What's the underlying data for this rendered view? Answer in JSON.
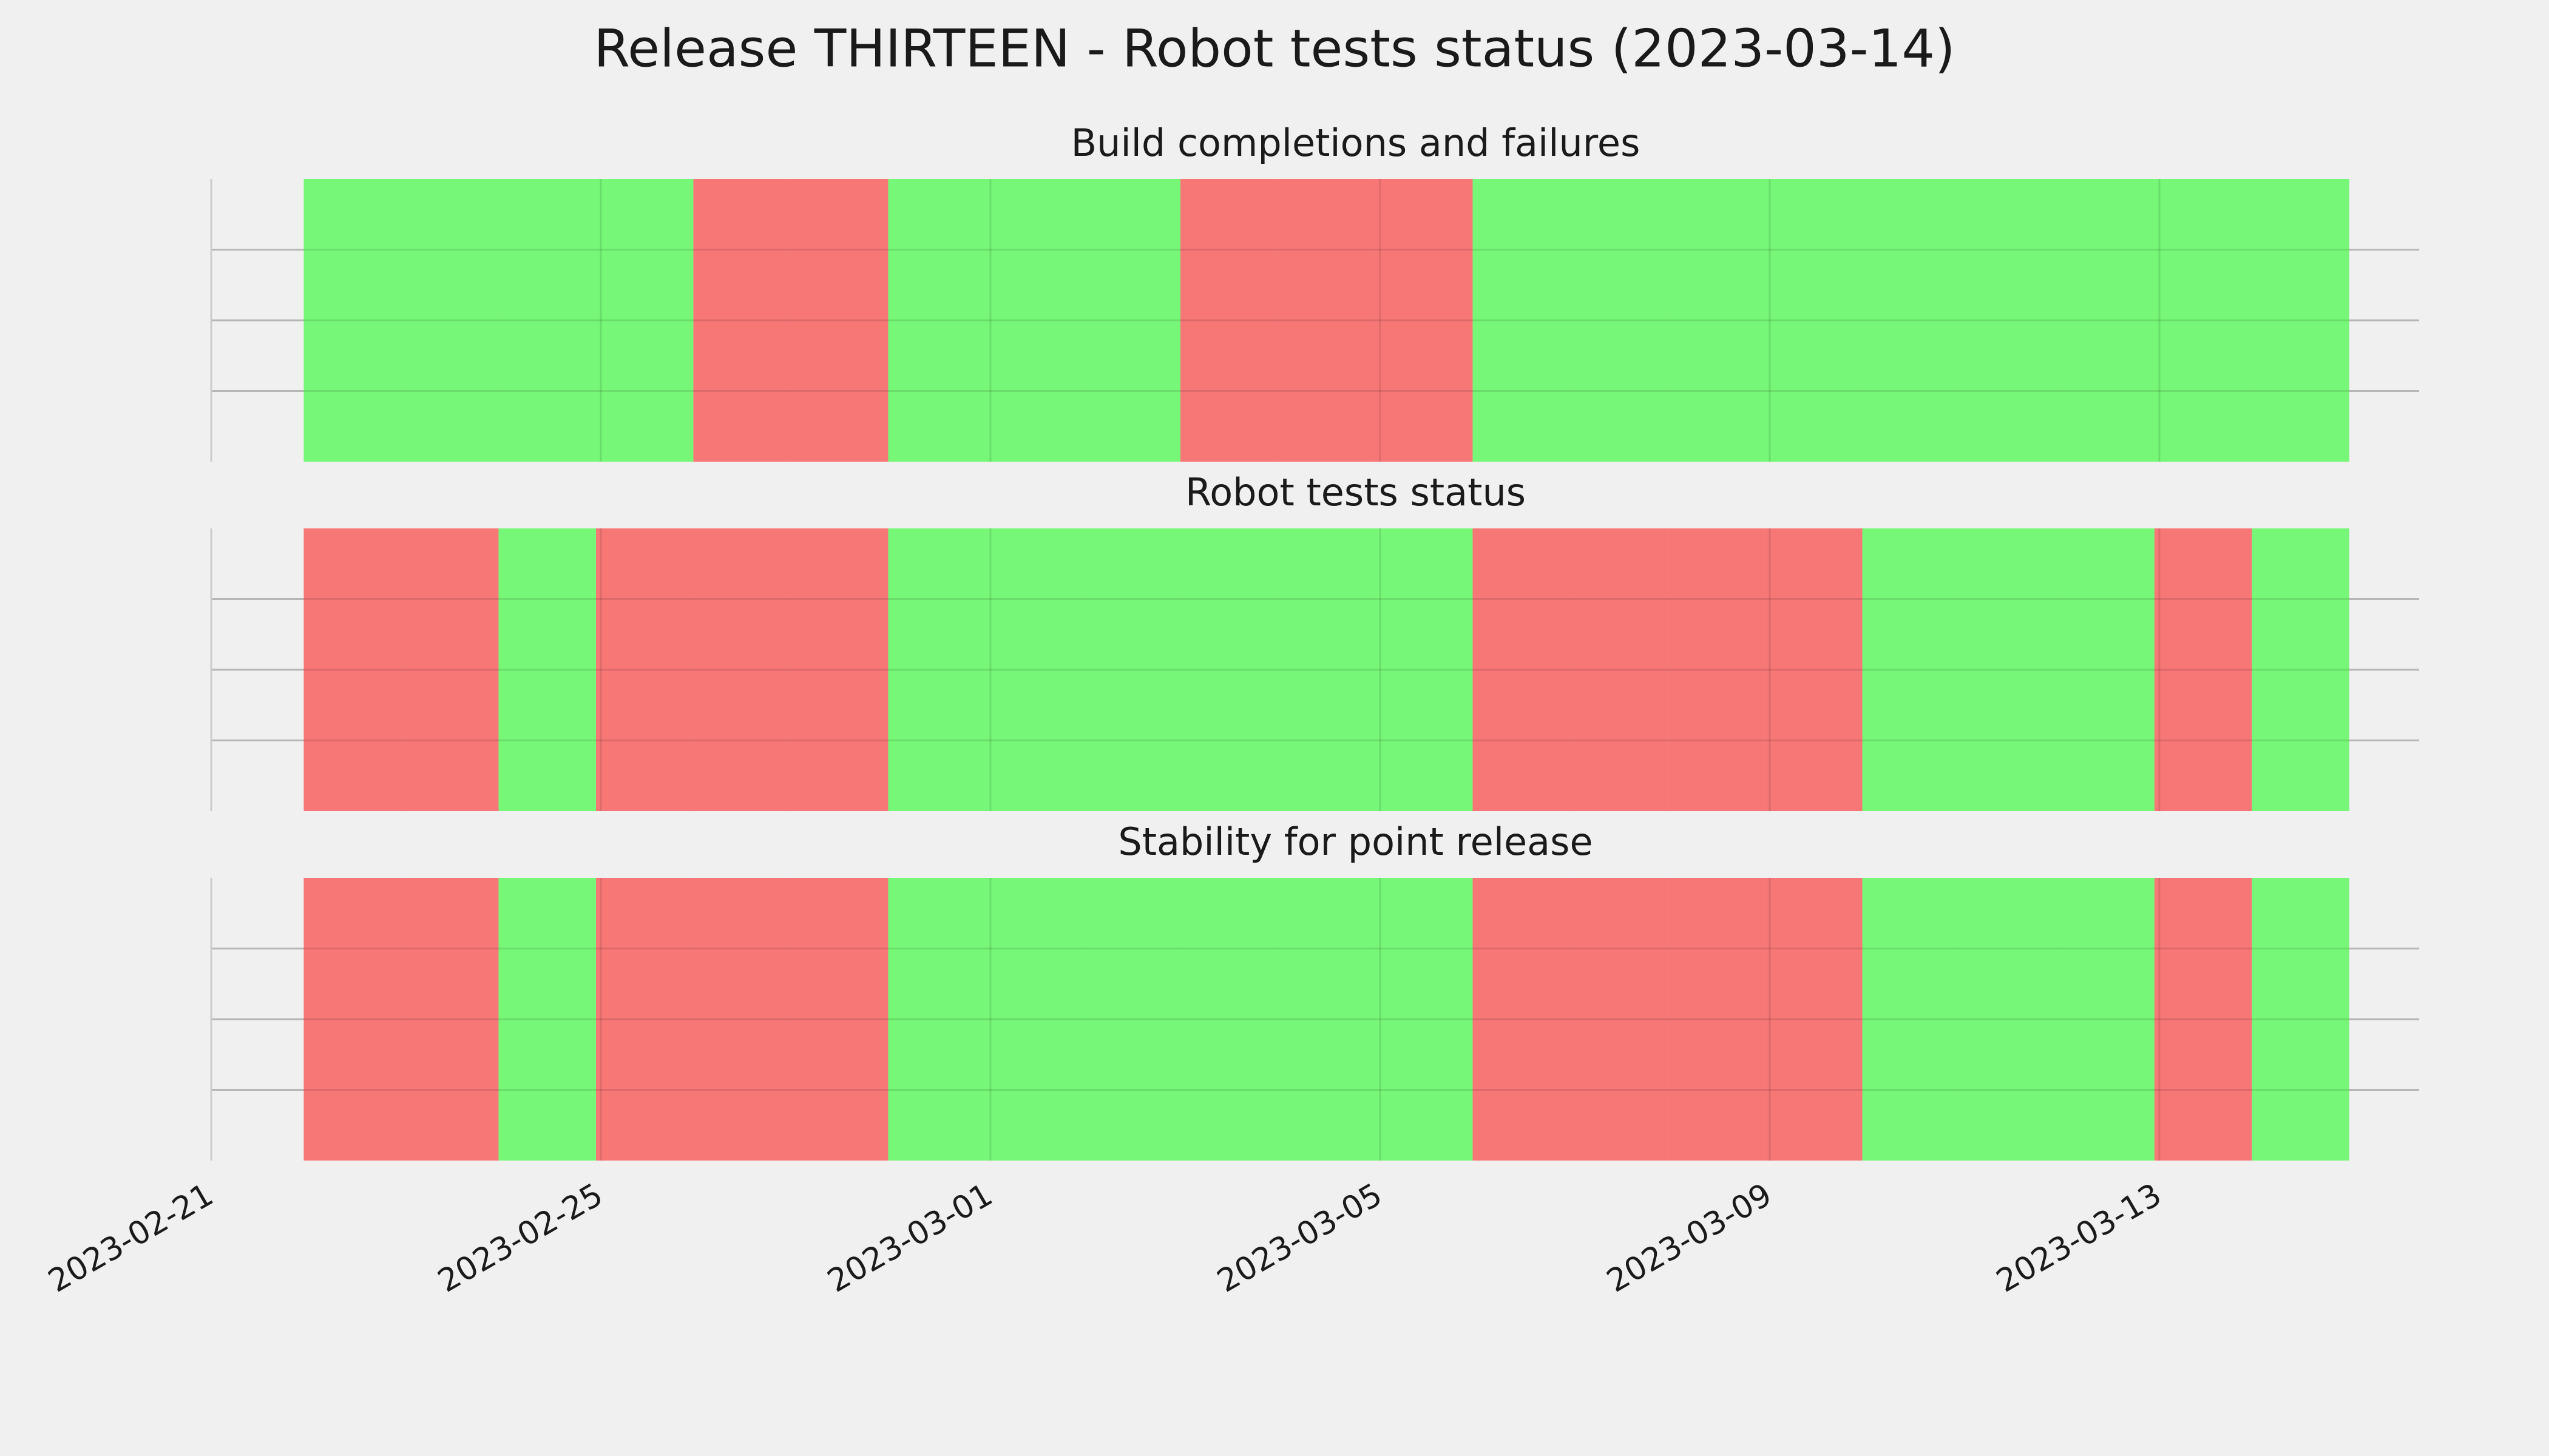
{
  "title": "Release THIRTEEN - Robot tests status (2023-03-14)",
  "chart_data": [
    {
      "type": "timeline",
      "title": "Build completions and failures",
      "x": [
        "2023-02-22",
        "2023-02-23",
        "2023-02-24",
        "2023-02-25",
        "2023-02-26",
        "2023-02-27",
        "2023-02-28",
        "2023-03-01",
        "2023-03-02",
        "2023-03-03",
        "2023-03-04",
        "2023-03-05",
        "2023-03-06",
        "2023-03-07",
        "2023-03-08",
        "2023-03-09",
        "2023-03-10",
        "2023-03-11",
        "2023-03-12",
        "2023-03-13",
        "2023-03-14"
      ],
      "values": [
        1,
        1,
        1,
        1,
        0,
        0,
        1,
        1,
        1,
        0,
        0,
        0,
        1,
        1,
        1,
        1,
        1,
        1,
        1,
        1,
        1
      ],
      "colors": [
        "#f77777",
        "#77f777"
      ],
      "xlim": [
        "2023-02-21",
        "2023-03-15"
      ],
      "xticks": [
        "2023-02-21",
        "2023-02-25",
        "2023-03-01",
        "2023-03-05",
        "2023-03-09",
        "2023-03-13"
      ],
      "ylim": [
        0,
        1
      ],
      "yticks": [
        0.25,
        0.5,
        0.75
      ],
      "grid": true
    },
    {
      "type": "timeline",
      "title": "Robot tests status",
      "x": [
        "2023-02-22",
        "2023-02-23",
        "2023-02-24",
        "2023-02-25",
        "2023-02-26",
        "2023-02-27",
        "2023-02-28",
        "2023-03-01",
        "2023-03-02",
        "2023-03-03",
        "2023-03-04",
        "2023-03-05",
        "2023-03-06",
        "2023-03-07",
        "2023-03-08",
        "2023-03-09",
        "2023-03-10",
        "2023-03-11",
        "2023-03-12",
        "2023-03-13",
        "2023-03-14"
      ],
      "values": [
        0,
        0,
        1,
        0,
        0,
        0,
        1,
        1,
        1,
        1,
        1,
        1,
        0,
        0,
        0,
        0,
        1,
        1,
        1,
        0,
        1
      ],
      "colors": [
        "#f77777",
        "#77f777"
      ],
      "xlim": [
        "2023-02-21",
        "2023-03-15"
      ],
      "xticks": [
        "2023-02-21",
        "2023-02-25",
        "2023-03-01",
        "2023-03-05",
        "2023-03-09",
        "2023-03-13"
      ],
      "ylim": [
        0,
        1
      ],
      "yticks": [
        0.25,
        0.5,
        0.75
      ],
      "grid": true
    },
    {
      "type": "timeline",
      "title": "Stability for point release",
      "x": [
        "2023-02-22",
        "2023-02-23",
        "2023-02-24",
        "2023-02-25",
        "2023-02-26",
        "2023-02-27",
        "2023-02-28",
        "2023-03-01",
        "2023-03-02",
        "2023-03-03",
        "2023-03-04",
        "2023-03-05",
        "2023-03-06",
        "2023-03-07",
        "2023-03-08",
        "2023-03-09",
        "2023-03-10",
        "2023-03-11",
        "2023-03-12",
        "2023-03-13",
        "2023-03-14"
      ],
      "values": [
        0,
        0,
        1,
        0,
        0,
        0,
        1,
        1,
        1,
        1,
        1,
        1,
        0,
        0,
        0,
        0,
        1,
        1,
        1,
        0,
        1
      ],
      "colors": [
        "#f77777",
        "#77f777"
      ],
      "xlim": [
        "2023-02-21",
        "2023-03-15"
      ],
      "xticks": [
        "2023-02-21",
        "2023-02-25",
        "2023-03-01",
        "2023-03-05",
        "2023-03-09",
        "2023-03-13"
      ],
      "ylim": [
        0,
        1
      ],
      "yticks": [
        0.25,
        0.5,
        0.75
      ],
      "grid": true
    }
  ]
}
